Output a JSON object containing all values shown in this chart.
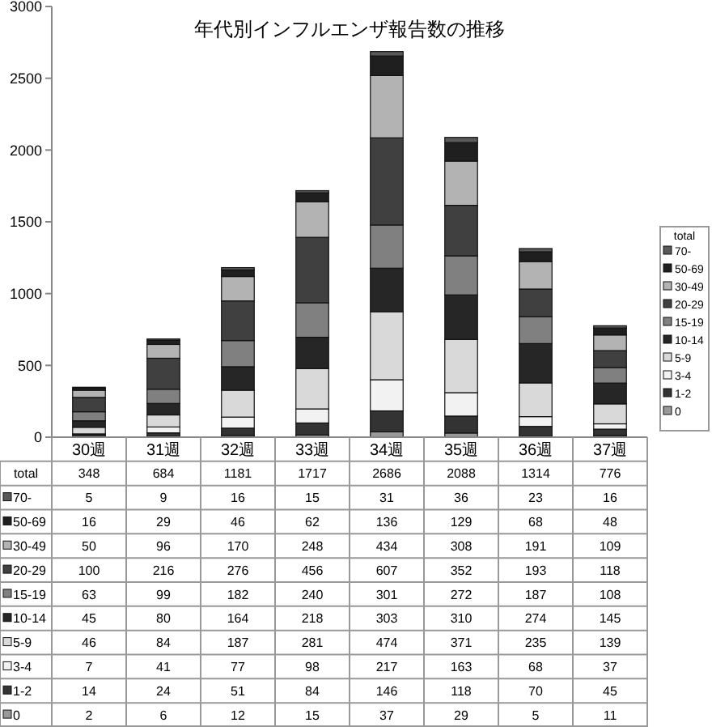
{
  "chart_data": {
    "type": "bar",
    "title": "年代別インフルエンザ報告数の推移",
    "stacked": true,
    "categories": [
      "30週",
      "31週",
      "32週",
      "33週",
      "34週",
      "35週",
      "36週",
      "37週"
    ],
    "series": [
      {
        "name": "0",
        "color": "#999999",
        "values": [
          2,
          6,
          12,
          15,
          37,
          29,
          5,
          11
        ]
      },
      {
        "name": "1-2",
        "color": "#333333",
        "values": [
          14,
          24,
          51,
          84,
          146,
          118,
          70,
          45
        ]
      },
      {
        "name": "3-4",
        "color": "#f2f2f2",
        "values": [
          7,
          41,
          77,
          98,
          217,
          163,
          68,
          37
        ]
      },
      {
        "name": "5-9",
        "color": "#d9d9d9",
        "values": [
          46,
          84,
          187,
          281,
          474,
          371,
          235,
          139
        ]
      },
      {
        "name": "10-14",
        "color": "#262626",
        "values": [
          45,
          80,
          164,
          218,
          303,
          310,
          274,
          145
        ]
      },
      {
        "name": "15-19",
        "color": "#808080",
        "values": [
          63,
          99,
          182,
          240,
          301,
          272,
          187,
          108
        ]
      },
      {
        "name": "20-29",
        "color": "#404040",
        "values": [
          100,
          216,
          276,
          456,
          607,
          352,
          193,
          118
        ]
      },
      {
        "name": "30-49",
        "color": "#b3b3b3",
        "values": [
          50,
          96,
          170,
          248,
          434,
          308,
          191,
          109
        ]
      },
      {
        "name": "50-69",
        "color": "#1f1f1f",
        "values": [
          16,
          29,
          46,
          62,
          136,
          129,
          68,
          48
        ]
      },
      {
        "name": "70-",
        "color": "#595959",
        "values": [
          5,
          9,
          16,
          15,
          31,
          36,
          23,
          16
        ]
      }
    ],
    "totals": [
      "348",
      "684",
      "1181",
      "1717",
      "2686",
      "2088",
      "1314",
      "776"
    ],
    "legend_title": "total",
    "legend": "right",
    "data_labels": true,
    "ylim": [
      0,
      3000
    ],
    "yticks": [
      0,
      500,
      1000,
      1500,
      2000,
      2500,
      3000
    ],
    "grid": false
  }
}
